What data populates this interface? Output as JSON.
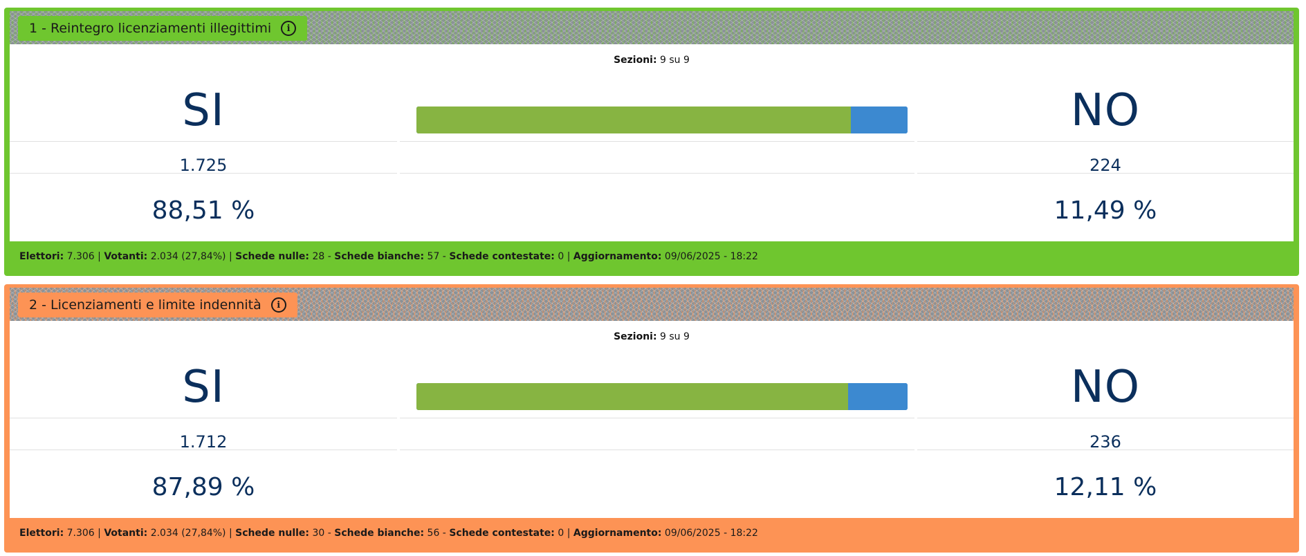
{
  "cards": [
    {
      "accent": "#6fc62f",
      "accent_soft": "rgba(111,198,47,0.55)",
      "title": "1 - Reintegro licenziamenti illegittimi",
      "info_icon": "info-icon",
      "sections_label": "Sezioni:",
      "sections_value": "9 su 9",
      "si_label": "SI",
      "no_label": "NO",
      "si_votes": "1.725",
      "no_votes": "224",
      "si_percent": "88,51 %",
      "no_percent": "11,49 %",
      "si_share": 0.8851,
      "footer": {
        "elettori_label": "Elettori:",
        "elettori": "7.306",
        "votanti_label": "Votanti:",
        "votanti": "2.034 (27,84%)",
        "nulle_label": "Schede nulle:",
        "nulle": "28",
        "bianche_label": "Schede bianche:",
        "bianche": "57",
        "contestate_label": "Schede contestate:",
        "contestate": "0",
        "aggiornamento_label": "Aggiornamento:",
        "aggiornamento": "09/06/2025 - 18:22"
      }
    },
    {
      "accent": "#fd9355",
      "accent_soft": "rgba(253,147,85,0.6)",
      "title": "2 - Licenziamenti e limite indennità",
      "info_icon": "info-icon",
      "sections_label": "Sezioni:",
      "sections_value": "9 su 9",
      "si_label": "SI",
      "no_label": "NO",
      "si_votes": "1.712",
      "no_votes": "236",
      "si_percent": "87,89 %",
      "no_percent": "12,11 %",
      "si_share": 0.8789,
      "footer": {
        "elettori_label": "Elettori:",
        "elettori": "7.306",
        "votanti_label": "Votanti:",
        "votanti": "2.034 (27,84%)",
        "nulle_label": "Schede nulle:",
        "nulle": "30",
        "bianche_label": "Schede bianche:",
        "bianche": "56",
        "contestate_label": "Schede contestate:",
        "contestate": "0",
        "aggiornamento_label": "Aggiornamento:",
        "aggiornamento": "09/06/2025 - 18:22"
      }
    }
  ]
}
